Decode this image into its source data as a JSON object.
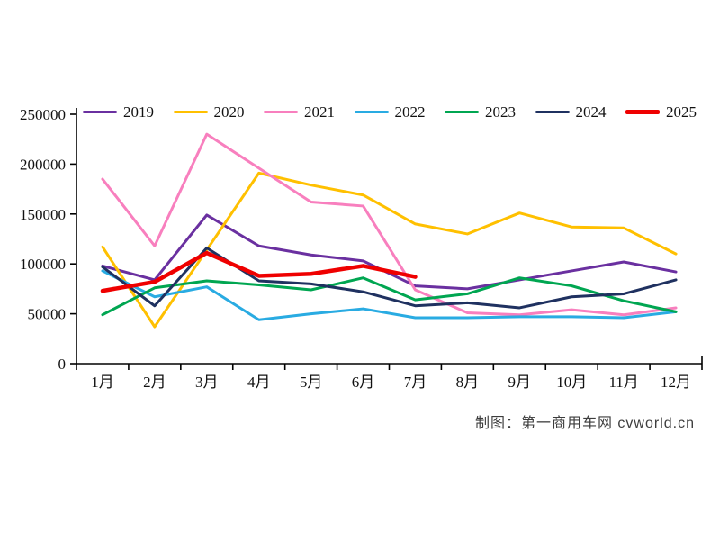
{
  "page": {
    "background": "#ffffff"
  },
  "caption": {
    "text": "制图：第一商用车网 cvworld.cn"
  },
  "axis": {
    "ytick_labels": [
      "0",
      "50000",
      "100000",
      "150000",
      "200000",
      "250000"
    ],
    "color": "#000000"
  },
  "chart_data": {
    "type": "line",
    "title": "",
    "xlabel": "",
    "ylabel": "",
    "categories": [
      "1月",
      "2月",
      "3月",
      "4月",
      "5月",
      "6月",
      "7月",
      "8月",
      "9月",
      "10月",
      "11月",
      "12月"
    ],
    "ylim": [
      0,
      250000
    ],
    "ytick_step": 50000,
    "grid": false,
    "legend_position": "top",
    "series": [
      {
        "name": "2019",
        "color": "#6A30A0",
        "stroke_width": 3,
        "values": [
          98000,
          84000,
          149000,
          118000,
          109000,
          103000,
          78000,
          75000,
          84000,
          93000,
          102000,
          92000
        ]
      },
      {
        "name": "2020",
        "color": "#FFC000",
        "stroke_width": 3,
        "values": [
          117000,
          37000,
          114000,
          191000,
          179000,
          169000,
          140000,
          130000,
          151000,
          137000,
          136000,
          110000
        ]
      },
      {
        "name": "2021",
        "color": "#F87FBE",
        "stroke_width": 3,
        "values": [
          185000,
          118000,
          230000,
          196000,
          162000,
          158000,
          74000,
          51000,
          49000,
          54000,
          49000,
          56000
        ]
      },
      {
        "name": "2022",
        "color": "#29ABE2",
        "stroke_width": 3,
        "values": [
          93000,
          67000,
          77000,
          44000,
          50000,
          55000,
          46000,
          46000,
          47000,
          47000,
          46000,
          52000
        ]
      },
      {
        "name": "2023",
        "color": "#00A651",
        "stroke_width": 3,
        "values": [
          49000,
          76000,
          83000,
          79000,
          74000,
          86000,
          64000,
          70000,
          86000,
          78000,
          63000,
          52000
        ]
      },
      {
        "name": "2024",
        "color": "#1F3160",
        "stroke_width": 3,
        "values": [
          97000,
          58000,
          116000,
          83000,
          80000,
          72000,
          58000,
          61000,
          56000,
          67000,
          70000,
          84000
        ]
      },
      {
        "name": "2025",
        "color": "#EF0000",
        "stroke_width": 4.5,
        "values": [
          73000,
          82000,
          111000,
          88000,
          90000,
          98000,
          87000
        ]
      }
    ]
  }
}
